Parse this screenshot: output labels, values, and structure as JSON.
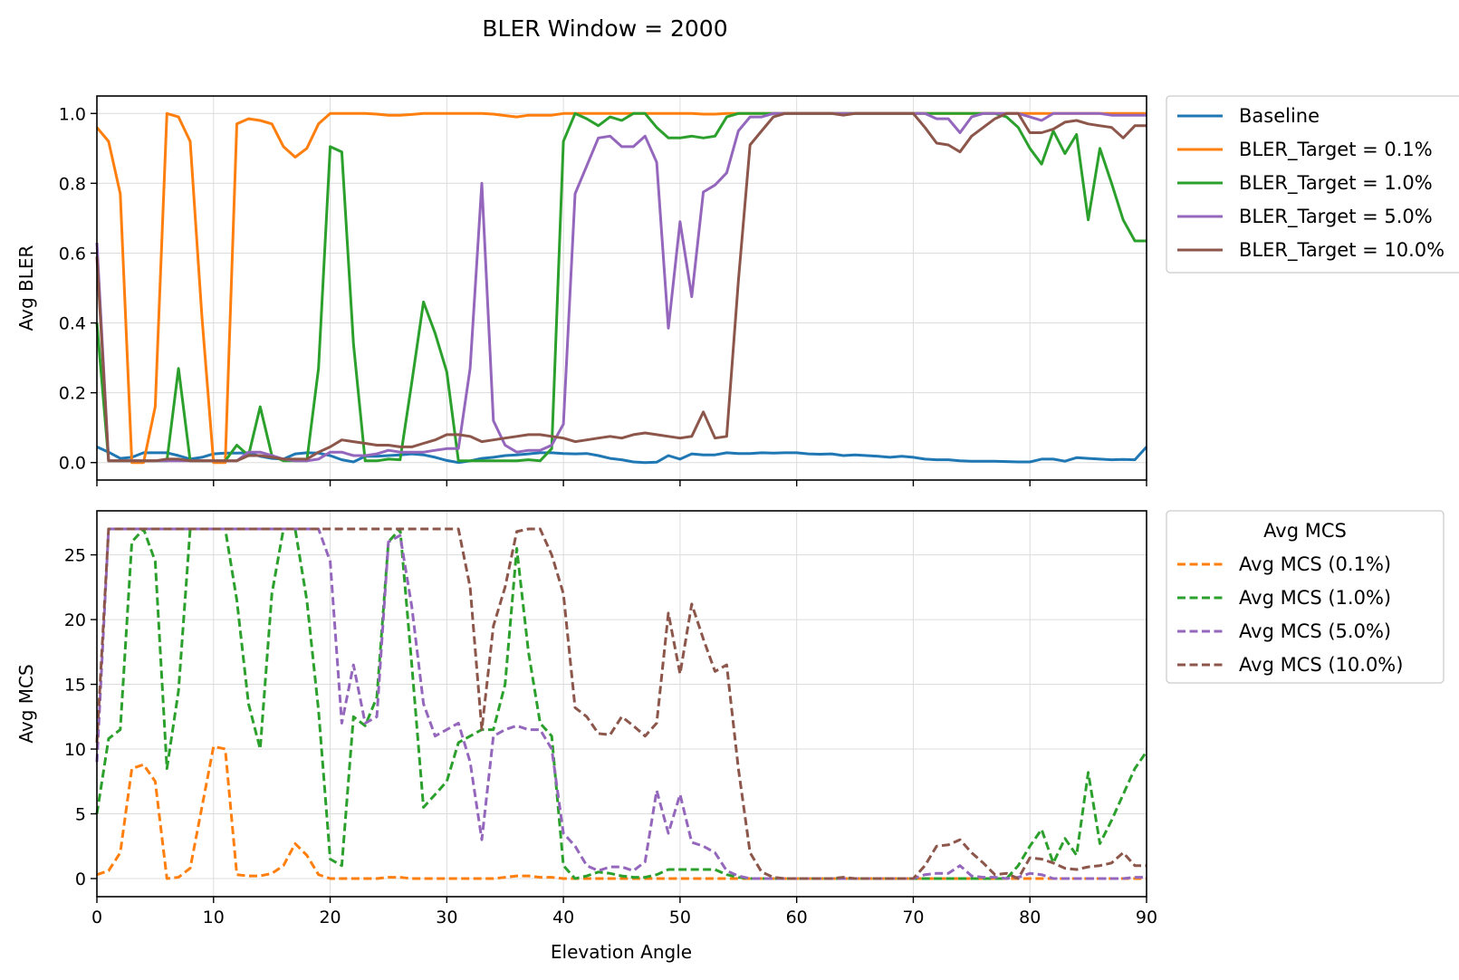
{
  "figure": {
    "title": "BLER Window = 2000"
  },
  "colors": {
    "Baseline": "#1f77b4",
    "t01": "#ff7f0e",
    "t1": "#2ca02c",
    "t5": "#9467bd",
    "t10": "#8c564b"
  },
  "chart_data": [
    {
      "type": "line",
      "title": "",
      "xlabel": "",
      "ylabel": "Avg BLER",
      "xlim": [
        0,
        90
      ],
      "ylim": [
        -0.05,
        1.05
      ],
      "yticks": [
        0.0,
        0.2,
        0.4,
        0.6,
        0.8,
        1.0
      ],
      "ytick_labels": [
        "0.0",
        "0.2",
        "0.4",
        "0.6",
        "0.8",
        "1.0"
      ],
      "grid": true,
      "legend_position": "outside-right-top",
      "x": [
        0,
        1,
        2,
        3,
        4,
        5,
        6,
        7,
        8,
        9,
        10,
        11,
        12,
        13,
        14,
        15,
        16,
        17,
        18,
        19,
        20,
        21,
        22,
        23,
        24,
        25,
        26,
        27,
        28,
        29,
        30,
        31,
        32,
        33,
        34,
        35,
        36,
        37,
        38,
        39,
        40,
        41,
        42,
        43,
        44,
        45,
        46,
        47,
        48,
        49,
        50,
        51,
        52,
        53,
        54,
        55,
        56,
        57,
        58,
        59,
        60,
        61,
        62,
        63,
        64,
        65,
        66,
        67,
        68,
        69,
        70,
        71,
        72,
        73,
        74,
        75,
        76,
        77,
        78,
        79,
        80,
        81,
        82,
        83,
        84,
        85,
        86,
        87,
        88,
        89,
        90
      ],
      "series": [
        {
          "name": "Baseline",
          "color_key": "Baseline",
          "dash": "solid",
          "values": [
            0.045,
            0.03,
            0.012,
            0.015,
            0.028,
            0.028,
            0.028,
            0.02,
            0.01,
            0.015,
            0.025,
            0.027,
            0.027,
            0.028,
            0.018,
            0.012,
            0.01,
            0.025,
            0.028,
            0.027,
            0.02,
            0.008,
            0.002,
            0.018,
            0.018,
            0.02,
            0.022,
            0.025,
            0.022,
            0.015,
            0.006,
            0.0,
            0.005,
            0.012,
            0.015,
            0.02,
            0.022,
            0.025,
            0.028,
            0.028,
            0.026,
            0.025,
            0.026,
            0.02,
            0.012,
            0.008,
            0.002,
            0.0,
            0.001,
            0.02,
            0.01,
            0.025,
            0.022,
            0.022,
            0.028,
            0.026,
            0.026,
            0.028,
            0.027,
            0.028,
            0.028,
            0.025,
            0.024,
            0.025,
            0.02,
            0.022,
            0.02,
            0.018,
            0.015,
            0.018,
            0.015,
            0.01,
            0.008,
            0.008,
            0.005,
            0.004,
            0.004,
            0.004,
            0.003,
            0.002,
            0.002,
            0.01,
            0.01,
            0.004,
            0.014,
            0.012,
            0.01,
            0.008,
            0.009,
            0.008,
            0.045
          ]
        },
        {
          "name": "BLER_Target = 0.1%",
          "color_key": "t01",
          "dash": "solid",
          "values": [
            0.96,
            0.92,
            0.77,
            0.0,
            0.0,
            0.16,
            1.0,
            0.99,
            0.92,
            0.42,
            0.0,
            0.0,
            0.97,
            0.985,
            0.98,
            0.97,
            0.905,
            0.875,
            0.9,
            0.97,
            1.0,
            1.0,
            1.0,
            1.0,
            0.998,
            0.995,
            0.995,
            0.997,
            1.0,
            1.0,
            1.0,
            1.0,
            1.0,
            1.0,
            0.998,
            0.994,
            0.99,
            0.995,
            0.995,
            0.995,
            1.0,
            1.0,
            1.0,
            1.0,
            1.0,
            1.0,
            1.0,
            1.0,
            1.0,
            1.0,
            1.0,
            1.0,
            0.998,
            0.998,
            1.0,
            1.0,
            1.0,
            1.0,
            1.0,
            1.0,
            1.0,
            1.0,
            1.0,
            1.0,
            1.0,
            1.0,
            1.0,
            1.0,
            1.0,
            1.0,
            1.0,
            1.0,
            1.0,
            1.0,
            1.0,
            1.0,
            1.0,
            1.0,
            1.0,
            1.0,
            1.0,
            1.0,
            1.0,
            1.0,
            1.0,
            1.0,
            1.0,
            1.0,
            1.0,
            1.0,
            1.0
          ]
        },
        {
          "name": "BLER_Target = 1.0%",
          "color_key": "t1",
          "dash": "solid",
          "values": [
            0.4,
            0.005,
            0.005,
            0.005,
            0.005,
            0.005,
            0.005,
            0.27,
            0.005,
            0.005,
            0.005,
            0.005,
            0.05,
            0.02,
            0.16,
            0.02,
            0.005,
            0.005,
            0.005,
            0.27,
            0.905,
            0.89,
            0.34,
            0.005,
            0.005,
            0.01,
            0.008,
            0.23,
            0.46,
            0.37,
            0.26,
            0.005,
            0.005,
            0.005,
            0.005,
            0.005,
            0.005,
            0.008,
            0.005,
            0.04,
            0.92,
            1.0,
            0.985,
            0.965,
            0.99,
            0.98,
            1.0,
            1.0,
            0.96,
            0.93,
            0.93,
            0.935,
            0.93,
            0.935,
            0.99,
            1.0,
            1.0,
            1.0,
            1.0,
            1.0,
            1.0,
            1.0,
            1.0,
            1.0,
            1.0,
            1.0,
            1.0,
            1.0,
            1.0,
            1.0,
            1.0,
            1.0,
            1.0,
            1.0,
            1.0,
            1.0,
            1.0,
            1.0,
            0.99,
            0.96,
            0.9,
            0.855,
            0.95,
            0.885,
            0.94,
            0.695,
            0.9,
            0.8,
            0.695,
            0.635,
            0.635
          ]
        },
        {
          "name": "BLER_Target = 5.0%",
          "color_key": "t5",
          "dash": "solid",
          "values": [
            0.63,
            0.005,
            0.005,
            0.005,
            0.005,
            0.005,
            0.005,
            0.005,
            0.005,
            0.005,
            0.005,
            0.005,
            0.005,
            0.03,
            0.03,
            0.02,
            0.01,
            0.005,
            0.005,
            0.01,
            0.03,
            0.03,
            0.02,
            0.02,
            0.025,
            0.035,
            0.03,
            0.03,
            0.03,
            0.035,
            0.04,
            0.04,
            0.27,
            0.8,
            0.12,
            0.05,
            0.03,
            0.035,
            0.035,
            0.05,
            0.11,
            0.77,
            0.85,
            0.93,
            0.935,
            0.905,
            0.905,
            0.935,
            0.86,
            0.385,
            0.69,
            0.475,
            0.775,
            0.795,
            0.83,
            0.95,
            0.99,
            0.99,
            1.0,
            1.0,
            1.0,
            1.0,
            1.0,
            1.0,
            1.0,
            1.0,
            1.0,
            1.0,
            1.0,
            1.0,
            1.0,
            1.0,
            0.985,
            0.985,
            0.945,
            0.99,
            1.0,
            1.0,
            1.0,
            1.0,
            0.99,
            0.98,
            1.0,
            1.0,
            1.0,
            1.0,
            1.0,
            0.995,
            0.995,
            0.995,
            0.995
          ]
        },
        {
          "name": "BLER_Target = 10.0%",
          "color_key": "t10",
          "dash": "solid",
          "values": [
            0.59,
            0.005,
            0.005,
            0.005,
            0.005,
            0.005,
            0.01,
            0.01,
            0.005,
            0.005,
            0.005,
            0.005,
            0.005,
            0.02,
            0.02,
            0.015,
            0.01,
            0.01,
            0.01,
            0.03,
            0.045,
            0.065,
            0.06,
            0.055,
            0.05,
            0.05,
            0.045,
            0.045,
            0.055,
            0.065,
            0.08,
            0.08,
            0.075,
            0.06,
            0.065,
            0.07,
            0.075,
            0.08,
            0.08,
            0.075,
            0.07,
            0.06,
            0.065,
            0.07,
            0.075,
            0.07,
            0.08,
            0.085,
            0.08,
            0.075,
            0.07,
            0.075,
            0.145,
            0.07,
            0.075,
            0.52,
            0.91,
            0.95,
            0.99,
            1.0,
            1.0,
            1.0,
            1.0,
            1.0,
            0.995,
            1.0,
            1.0,
            1.0,
            1.0,
            1.0,
            1.0,
            0.96,
            0.915,
            0.91,
            0.89,
            0.935,
            0.96,
            0.985,
            1.0,
            1.0,
            0.945,
            0.945,
            0.955,
            0.975,
            0.98,
            0.97,
            0.965,
            0.96,
            0.93,
            0.965,
            0.965
          ]
        }
      ]
    },
    {
      "type": "line",
      "title": "",
      "xlabel": "Elevation Angle",
      "ylabel": "Avg MCS",
      "xlim": [
        0,
        90
      ],
      "ylim": [
        -1.4,
        28.4
      ],
      "xticks": [
        0,
        10,
        20,
        30,
        40,
        50,
        60,
        70,
        80,
        90
      ],
      "xtick_labels": [
        "0",
        "10",
        "20",
        "30",
        "40",
        "50",
        "60",
        "70",
        "80",
        "90"
      ],
      "yticks": [
        0,
        5,
        10,
        15,
        20,
        25
      ],
      "ytick_labels": [
        "0",
        "5",
        "10",
        "15",
        "20",
        "25"
      ],
      "grid": true,
      "legend_title": "Avg MCS",
      "legend_position": "outside-right-top",
      "x": [
        0,
        1,
        2,
        3,
        4,
        5,
        6,
        7,
        8,
        9,
        10,
        11,
        12,
        13,
        14,
        15,
        16,
        17,
        18,
        19,
        20,
        21,
        22,
        23,
        24,
        25,
        26,
        27,
        28,
        29,
        30,
        31,
        32,
        33,
        34,
        35,
        36,
        37,
        38,
        39,
        40,
        41,
        42,
        43,
        44,
        45,
        46,
        47,
        48,
        49,
        50,
        51,
        52,
        53,
        54,
        55,
        56,
        57,
        58,
        59,
        60,
        61,
        62,
        63,
        64,
        65,
        66,
        67,
        68,
        69,
        70,
        71,
        72,
        73,
        74,
        75,
        76,
        77,
        78,
        79,
        80,
        81,
        82,
        83,
        84,
        85,
        86,
        87,
        88,
        89,
        90
      ],
      "series": [
        {
          "name": "Avg MCS (0.1%)",
          "color_key": "t01",
          "dash": "dashed",
          "values": [
            0.3,
            0.6,
            2.0,
            8.5,
            8.8,
            7.5,
            0.0,
            0.1,
            0.8,
            5.5,
            10.2,
            10.0,
            0.3,
            0.2,
            0.2,
            0.4,
            1.0,
            2.7,
            1.8,
            0.3,
            0.0,
            0.0,
            0.0,
            0.0,
            0.0,
            0.1,
            0.1,
            0.0,
            0.0,
            0.0,
            0.0,
            0.0,
            0.0,
            0.0,
            0.0,
            0.1,
            0.2,
            0.2,
            0.1,
            0.1,
            0.0,
            0.0,
            0.0,
            0.0,
            0.0,
            0.0,
            0.0,
            0.0,
            0.0,
            0.0,
            0.0,
            0.0,
            0.0,
            0.0,
            0.0,
            0.0,
            0.0,
            0.0,
            0.0,
            0.0,
            0.0,
            0.0,
            0.0,
            0.0,
            0.0,
            0.0,
            0.0,
            0.0,
            0.0,
            0.0,
            0.0,
            0.0,
            0.0,
            0.0,
            0.0,
            0.0,
            0.0,
            0.0,
            0.0,
            0.0,
            0.0,
            0.0,
            0.0,
            0.0,
            0.0,
            0.0,
            0.0,
            0.0,
            0.0,
            0.0,
            0.0
          ]
        },
        {
          "name": "Avg MCS (1.0%)",
          "color_key": "t1",
          "dash": "dashed",
          "values": [
            5.0,
            10.8,
            11.5,
            26.0,
            27.0,
            24.5,
            8.5,
            14.5,
            27.0,
            27.0,
            27.0,
            27.0,
            21.5,
            13.5,
            10.0,
            22.0,
            27.0,
            27.0,
            21.5,
            13.0,
            1.5,
            1.0,
            12.5,
            11.8,
            14.0,
            26.0,
            27.0,
            16.5,
            5.5,
            6.5,
            7.5,
            10.5,
            11.0,
            11.5,
            11.5,
            15.0,
            25.5,
            17.5,
            12.0,
            11.0,
            1.0,
            0.0,
            0.2,
            0.5,
            0.4,
            0.2,
            0.1,
            0.1,
            0.3,
            0.7,
            0.7,
            0.7,
            0.7,
            0.7,
            0.3,
            0.1,
            0.0,
            0.0,
            0.0,
            0.0,
            0.0,
            0.0,
            0.0,
            0.0,
            0.0,
            0.0,
            0.0,
            0.0,
            0.0,
            0.0,
            0.0,
            0.0,
            0.0,
            0.0,
            0.0,
            0.0,
            0.0,
            0.0,
            0.0,
            1.0,
            2.5,
            3.8,
            1.2,
            3.1,
            1.8,
            8.2,
            2.7,
            4.5,
            6.5,
            8.5,
            9.8
          ]
        },
        {
          "name": "Avg MCS (5.0%)",
          "color_key": "t5",
          "dash": "dashed",
          "values": [
            9.0,
            27.0,
            27.0,
            27.0,
            27.0,
            27.0,
            27.0,
            27.0,
            27.0,
            27.0,
            27.0,
            27.0,
            27.0,
            27.0,
            27.0,
            27.0,
            27.0,
            27.0,
            27.0,
            27.0,
            24.5,
            12.0,
            16.5,
            12.0,
            12.5,
            26.0,
            26.5,
            21.0,
            13.5,
            11.0,
            11.5,
            12.0,
            9.0,
            3.0,
            11.0,
            11.5,
            11.8,
            11.5,
            11.5,
            10.0,
            3.5,
            2.5,
            1.0,
            0.6,
            0.9,
            0.9,
            0.6,
            1.3,
            6.8,
            3.5,
            6.5,
            2.8,
            2.5,
            2.0,
            0.6,
            0.2,
            0.0,
            0.0,
            0.0,
            0.0,
            0.0,
            0.0,
            0.0,
            0.0,
            0.0,
            0.0,
            0.0,
            0.0,
            0.0,
            0.0,
            0.0,
            0.3,
            0.4,
            0.4,
            1.0,
            0.2,
            0.1,
            0.1,
            0.0,
            0.1,
            0.4,
            0.3,
            0.0,
            0.0,
            0.0,
            0.0,
            0.0,
            0.0,
            0.0,
            0.1,
            0.1
          ]
        },
        {
          "name": "Avg MCS (10.0%)",
          "color_key": "t10",
          "dash": "dashed",
          "values": [
            10.5,
            27.0,
            27.0,
            27.0,
            27.0,
            27.0,
            27.0,
            27.0,
            27.0,
            27.0,
            27.0,
            27.0,
            27.0,
            27.0,
            27.0,
            27.0,
            27.0,
            27.0,
            27.0,
            27.0,
            27.0,
            27.0,
            27.0,
            27.0,
            27.0,
            27.0,
            27.0,
            27.0,
            27.0,
            27.0,
            27.0,
            27.0,
            22.5,
            11.5,
            19.5,
            22.5,
            26.8,
            27.0,
            27.0,
            25.0,
            22.0,
            13.2,
            12.5,
            11.2,
            11.1,
            12.5,
            11.8,
            11.0,
            12.0,
            20.5,
            15.8,
            21.2,
            18.5,
            16.0,
            16.5,
            8.5,
            2.0,
            0.5,
            0.1,
            0.0,
            0.0,
            0.0,
            0.0,
            0.0,
            0.1,
            0.0,
            0.0,
            0.0,
            0.0,
            0.0,
            0.0,
            1.0,
            2.5,
            2.6,
            3.0,
            2.0,
            1.2,
            0.3,
            0.4,
            0.0,
            1.6,
            1.5,
            1.2,
            0.8,
            0.7,
            0.9,
            1.0,
            1.2,
            2.0,
            1.0,
            1.0
          ]
        }
      ]
    }
  ]
}
